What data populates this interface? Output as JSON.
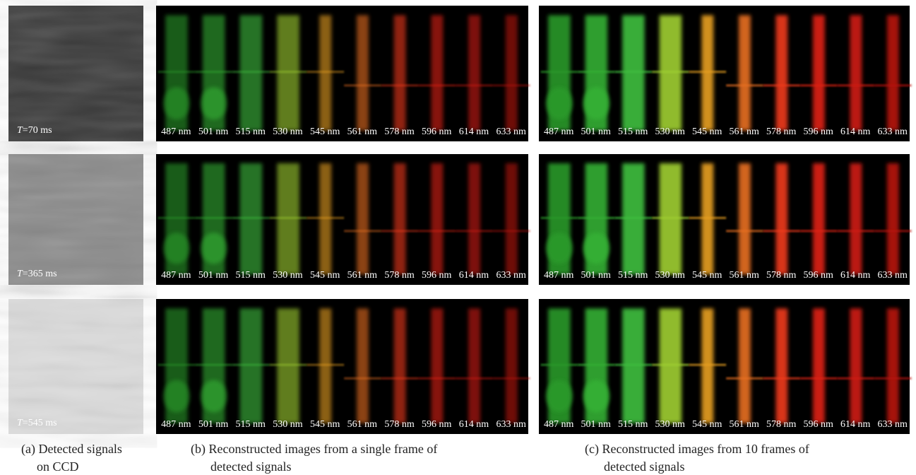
{
  "exposures": [
    {
      "symbol": "T",
      "text": "=70 ms"
    },
    {
      "symbol": "T",
      "text": "=365 ms"
    },
    {
      "symbol": "T",
      "text": "=545 ms"
    }
  ],
  "wavelength_labels": [
    "487 nm",
    "501 nm",
    "515 nm",
    "530 nm",
    "545 nm",
    "561 nm",
    "578 nm",
    "596 nm",
    "614 nm",
    "633 nm"
  ],
  "captions": [
    {
      "lines": [
        "(a) Detected signals",
        "on CCD"
      ]
    },
    {
      "lines": [
        "(b) Reconstructed images from a single frame of",
        "detected signals"
      ]
    },
    {
      "lines": [
        "(c) Reconstructed images from 10 frames of",
        "detected signals"
      ]
    }
  ]
}
